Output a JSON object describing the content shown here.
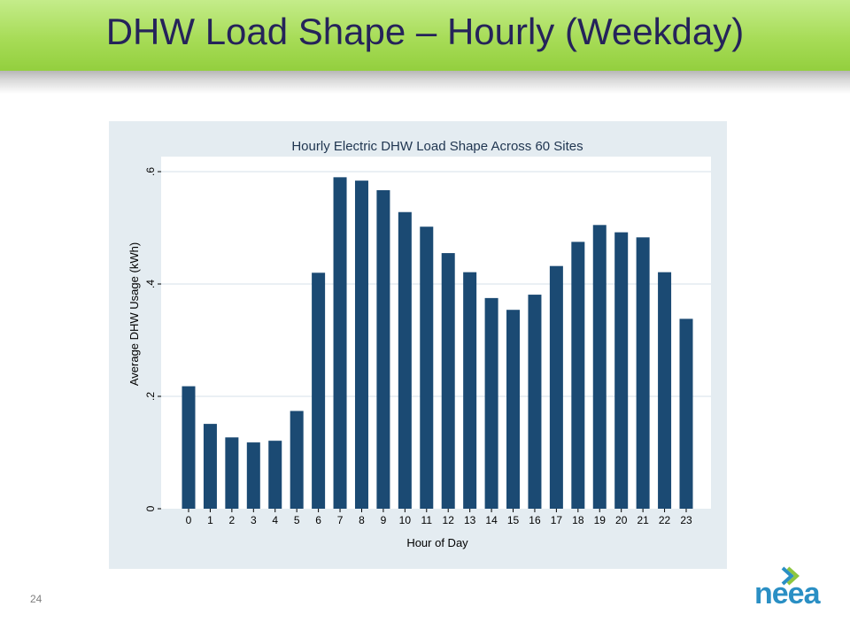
{
  "slide": {
    "title": "DHW Load Shape – Hourly (Weekday)",
    "page_number": "24",
    "logo_text": "neea"
  },
  "colors": {
    "bar": "#1b4a73",
    "panel": "#e4ecf1",
    "plot_bg": "#ffffff",
    "grid": "#e3ebf0",
    "title_band": "#a7dc57",
    "title_text": "#25235a",
    "logo_blue": "#2a8fc4",
    "logo_green": "#8dc63f"
  },
  "chart_data": {
    "type": "bar",
    "title": "Hourly Electric DHW Load Shape Across 60 Sites",
    "xlabel": "Hour of Day",
    "ylabel": "Average DHW Usage (kWh)",
    "categories": [
      "0",
      "1",
      "2",
      "3",
      "4",
      "5",
      "6",
      "7",
      "8",
      "9",
      "10",
      "11",
      "12",
      "13",
      "14",
      "15",
      "16",
      "17",
      "18",
      "19",
      "20",
      "21",
      "22",
      "23"
    ],
    "values": [
      0.218,
      0.151,
      0.127,
      0.118,
      0.121,
      0.174,
      0.42,
      0.59,
      0.584,
      0.567,
      0.528,
      0.502,
      0.455,
      0.421,
      0.375,
      0.354,
      0.381,
      0.432,
      0.475,
      0.505,
      0.492,
      0.483,
      0.421,
      0.338
    ],
    "ylim": [
      0,
      0.6
    ],
    "yticks": [
      0,
      0.2,
      0.4,
      0.6
    ],
    "ytick_labels": [
      "0",
      ".2",
      ".4",
      ".6"
    ],
    "grid": true
  }
}
